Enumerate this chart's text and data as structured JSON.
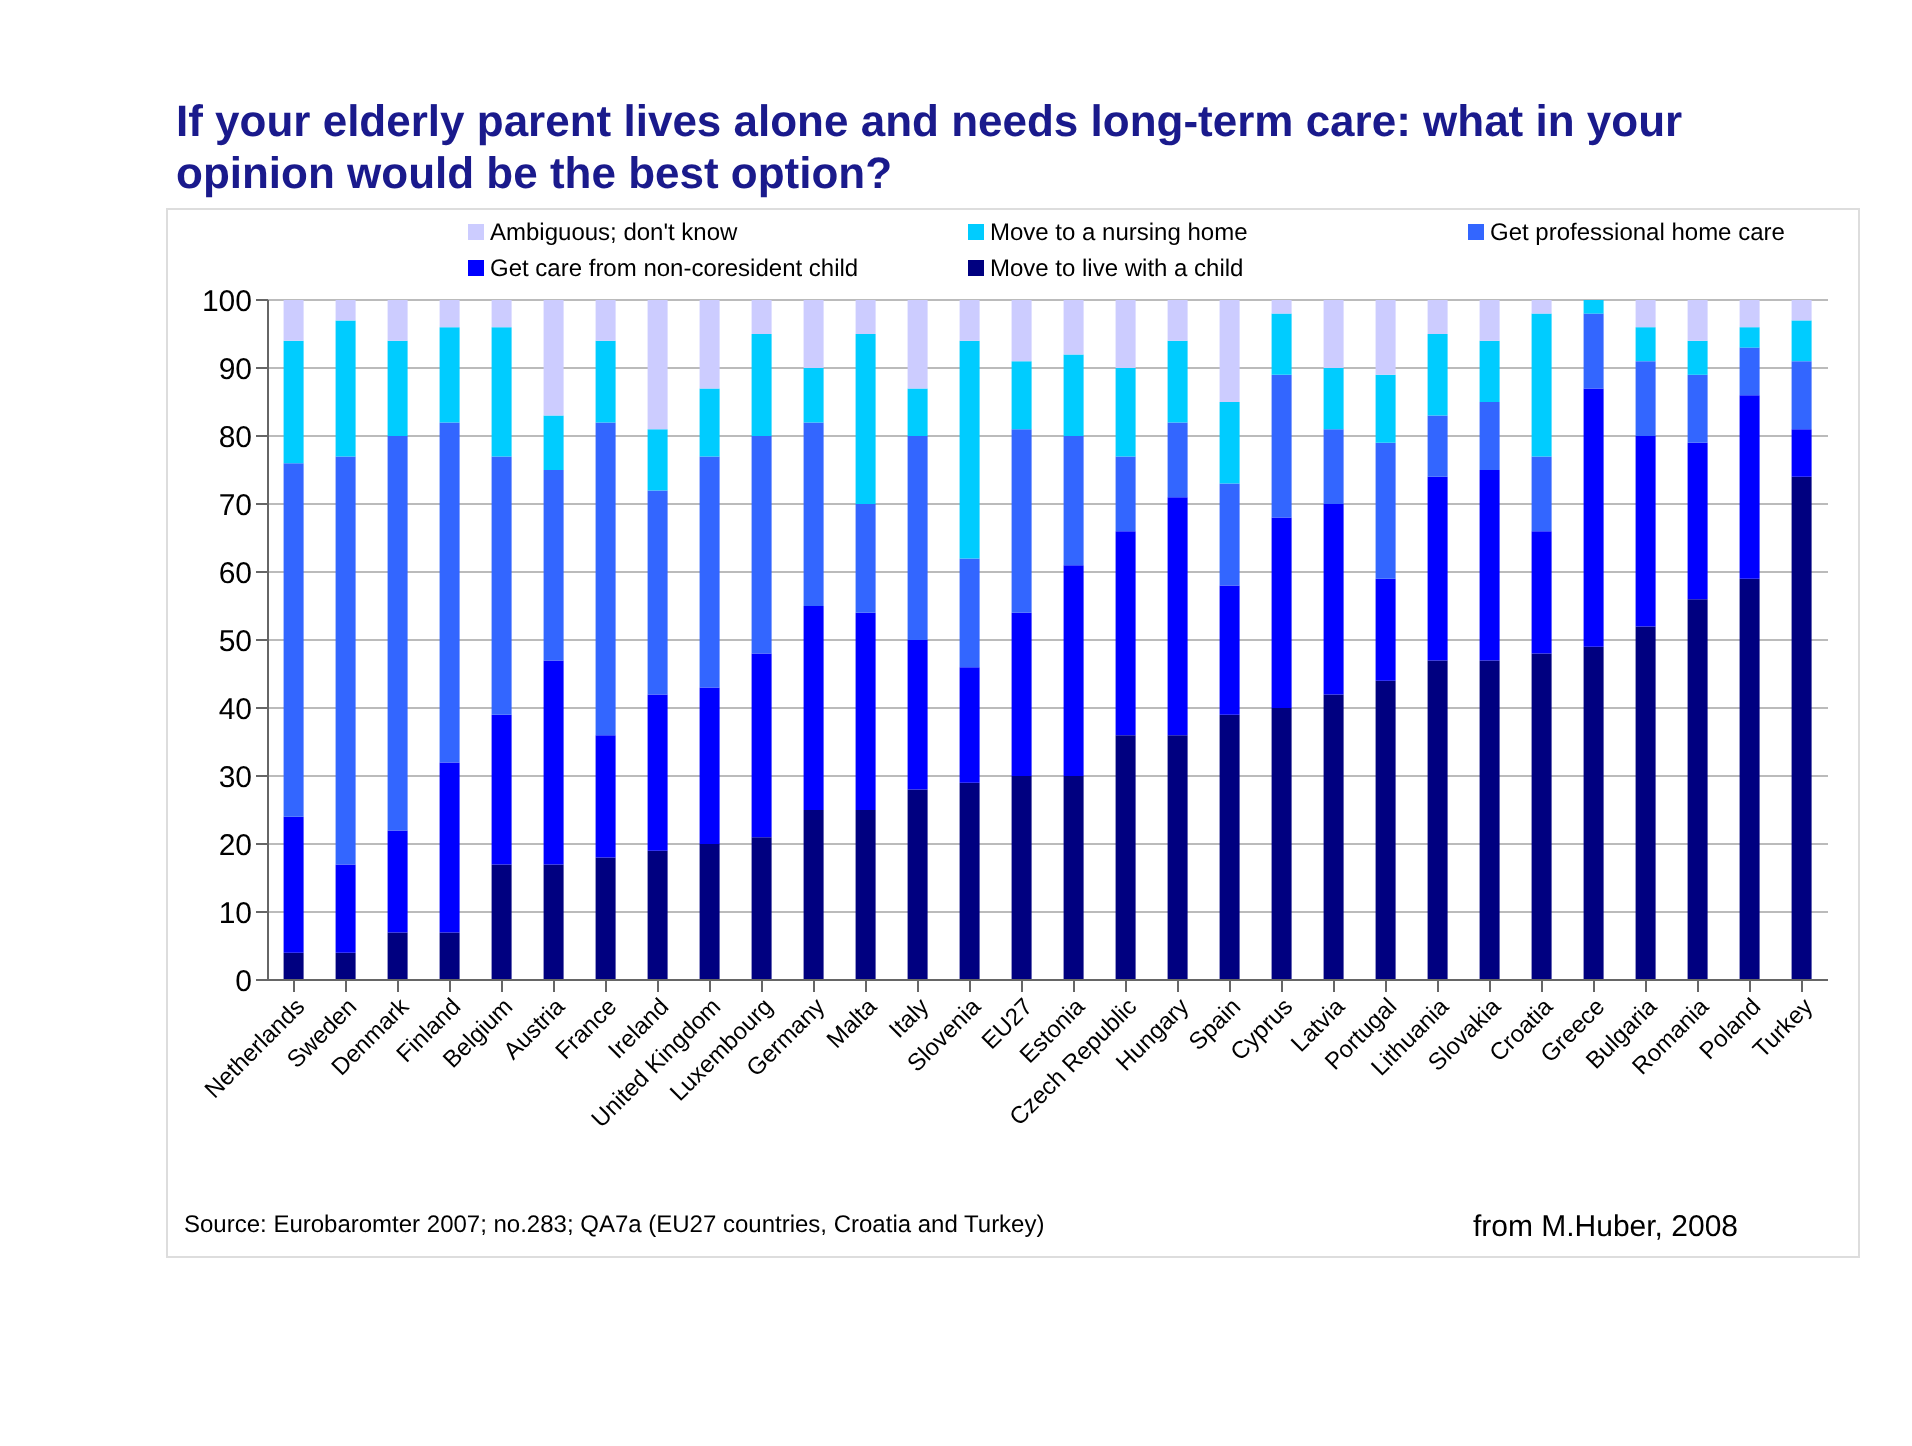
{
  "chart_data": {
    "type": "bar",
    "title": "If your elderly parent lives alone and needs long-term care: what in your opinion would be the best option?",
    "categories": [
      "Netherlands",
      "Sweden",
      "Denmark",
      "Finland",
      "Belgium",
      "Austria",
      "France",
      "Ireland",
      "United Kingdom",
      "Luxembourg",
      "Germany",
      "Malta",
      "Italy",
      "Slovenia",
      "EU27",
      "Estonia",
      "Czech Republic",
      "Hungary",
      "Spain",
      "Cyprus",
      "Latvia",
      "Portugal",
      "Lithuania",
      "Slovakia",
      "Croatia",
      "Greece",
      "Bulgaria",
      "Romania",
      "Poland",
      "Turkey"
    ],
    "stacked": true,
    "ylim": [
      0,
      100
    ],
    "yticks": [
      0,
      10,
      20,
      30,
      40,
      50,
      60,
      70,
      80,
      90,
      100
    ],
    "grid": "y",
    "legend": "top",
    "series": [
      {
        "name": "Move to live with a child",
        "color": "#000080",
        "values": [
          4,
          4,
          7,
          7,
          17,
          17,
          18,
          19,
          20,
          21,
          25,
          25,
          28,
          29,
          30,
          30,
          36,
          36,
          39,
          40,
          42,
          44,
          47,
          47,
          48,
          49,
          52,
          56,
          59,
          74
        ]
      },
      {
        "name": "Get care from non-coresident child",
        "color": "#0000ff",
        "values": [
          20,
          13,
          15,
          25,
          22,
          30,
          18,
          23,
          23,
          27,
          30,
          29,
          22,
          17,
          24,
          31,
          30,
          35,
          19,
          28,
          28,
          15,
          27,
          28,
          18,
          38,
          28,
          23,
          27,
          7
        ]
      },
      {
        "name": "Get professional home care",
        "color": "#3366ff",
        "values": [
          52,
          60,
          58,
          50,
          38,
          28,
          46,
          30,
          34,
          32,
          27,
          16,
          30,
          16,
          27,
          19,
          11,
          11,
          15,
          21,
          11,
          20,
          9,
          10,
          11,
          11,
          11,
          10,
          7,
          10
        ]
      },
      {
        "name": "Move to a nursing home",
        "color": "#00ccff",
        "values": [
          18,
          20,
          14,
          14,
          19,
          8,
          12,
          9,
          10,
          15,
          8,
          25,
          7,
          32,
          10,
          12,
          13,
          12,
          12,
          9,
          9,
          10,
          12,
          9,
          21,
          2,
          5,
          5,
          3,
          6
        ]
      },
      {
        "name": "Ambiguous; don't know",
        "color": "#ccccff",
        "values": [
          6,
          3,
          6,
          4,
          4,
          17,
          6,
          19,
          13,
          5,
          10,
          5,
          13,
          6,
          9,
          8,
          10,
          6,
          15,
          2,
          10,
          11,
          5,
          6,
          2,
          0,
          4,
          6,
          4,
          3
        ]
      }
    ],
    "annotations": [
      "Source: Eurobaromter 2007; no.283; QA7a (EU27 countries, Croatia and Turkey)",
      "from M.Huber, 2008"
    ]
  }
}
